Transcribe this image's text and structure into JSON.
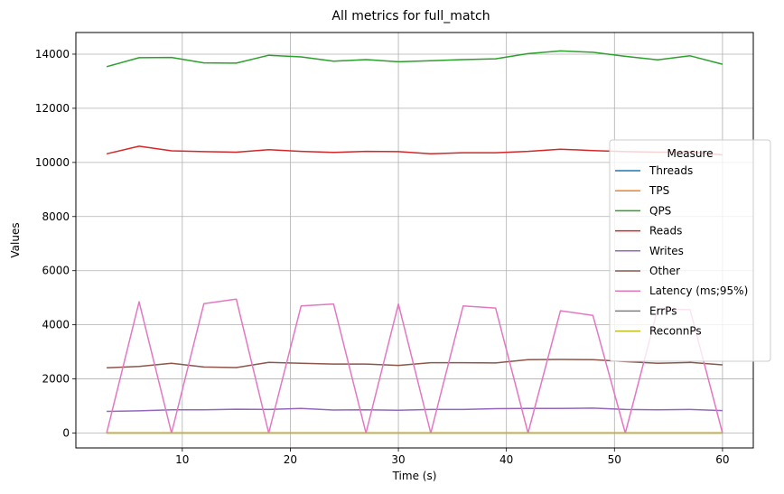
{
  "chart_data": {
    "type": "line",
    "title": "All metrics for full_match",
    "xlabel": "Time (s)",
    "ylabel": "Values",
    "xlim": [
      0.15,
      62.85
    ],
    "ylim": [
      -550,
      14800
    ],
    "xticks": [
      10,
      20,
      30,
      40,
      50,
      60
    ],
    "yticks": [
      0,
      2000,
      4000,
      6000,
      8000,
      10000,
      12000,
      14000
    ],
    "grid": true,
    "legend_title": "Measure",
    "legend_position": "center-right",
    "x": [
      3,
      6,
      9,
      12,
      15,
      18,
      21,
      24,
      27,
      30,
      33,
      36,
      39,
      42,
      45,
      48,
      51,
      54,
      57,
      60
    ],
    "series": [
      {
        "name": "Threads",
        "color": "#1f77b4",
        "values": [
          8,
          8,
          8,
          8,
          8,
          8,
          8,
          8,
          8,
          8,
          8,
          8,
          8,
          8,
          8,
          8,
          8,
          8,
          8,
          8
        ]
      },
      {
        "name": "TPS",
        "color": "#ff7f0e",
        "values": [
          10,
          10,
          10,
          10,
          10,
          10,
          10,
          10,
          10,
          10,
          10,
          10,
          10,
          10,
          10,
          10,
          10,
          10,
          10,
          10
        ]
      },
      {
        "name": "QPS",
        "color": "#2ca02c",
        "values": [
          13540,
          13870,
          13880,
          13680,
          13670,
          13960,
          13900,
          13740,
          13800,
          13720,
          13760,
          13800,
          13830,
          14020,
          14120,
          14070,
          13920,
          13790,
          13940,
          13630
        ]
      },
      {
        "name": "Reads",
        "color": "#d62728",
        "values": [
          10320,
          10600,
          10430,
          10400,
          10380,
          10470,
          10410,
          10370,
          10410,
          10400,
          10320,
          10360,
          10360,
          10410,
          10490,
          10440,
          10400,
          10380,
          10390,
          10280
        ]
      },
      {
        "name": "Writes",
        "color": "#9467bd",
        "values": [
          800,
          820,
          860,
          860,
          880,
          870,
          910,
          850,
          860,
          840,
          870,
          870,
          900,
          910,
          910,
          920,
          870,
          860,
          870,
          830
        ]
      },
      {
        "name": "Other",
        "color": "#8c564b",
        "values": [
          2410,
          2460,
          2580,
          2440,
          2420,
          2610,
          2580,
          2550,
          2550,
          2500,
          2600,
          2600,
          2590,
          2710,
          2720,
          2710,
          2640,
          2580,
          2610,
          2520
        ]
      },
      {
        "name": "Latency (ms;95%)",
        "color": "#e377c2",
        "values": [
          0,
          4850,
          0,
          4780,
          4950,
          0,
          4700,
          4770,
          0,
          4770,
          0,
          4700,
          4620,
          0,
          4520,
          4350,
          0,
          4580,
          4560,
          0
        ]
      },
      {
        "name": "ErrPs",
        "color": "#7f7f7f",
        "values": [
          0,
          0,
          0,
          0,
          0,
          0,
          0,
          0,
          0,
          0,
          0,
          0,
          0,
          0,
          0,
          0,
          0,
          0,
          0,
          0
        ]
      },
      {
        "name": "ReconnPs",
        "color": "#bcbd22",
        "values": [
          0,
          0,
          0,
          0,
          0,
          0,
          0,
          0,
          0,
          0,
          0,
          0,
          0,
          0,
          0,
          0,
          0,
          0,
          0,
          0
        ]
      }
    ]
  }
}
